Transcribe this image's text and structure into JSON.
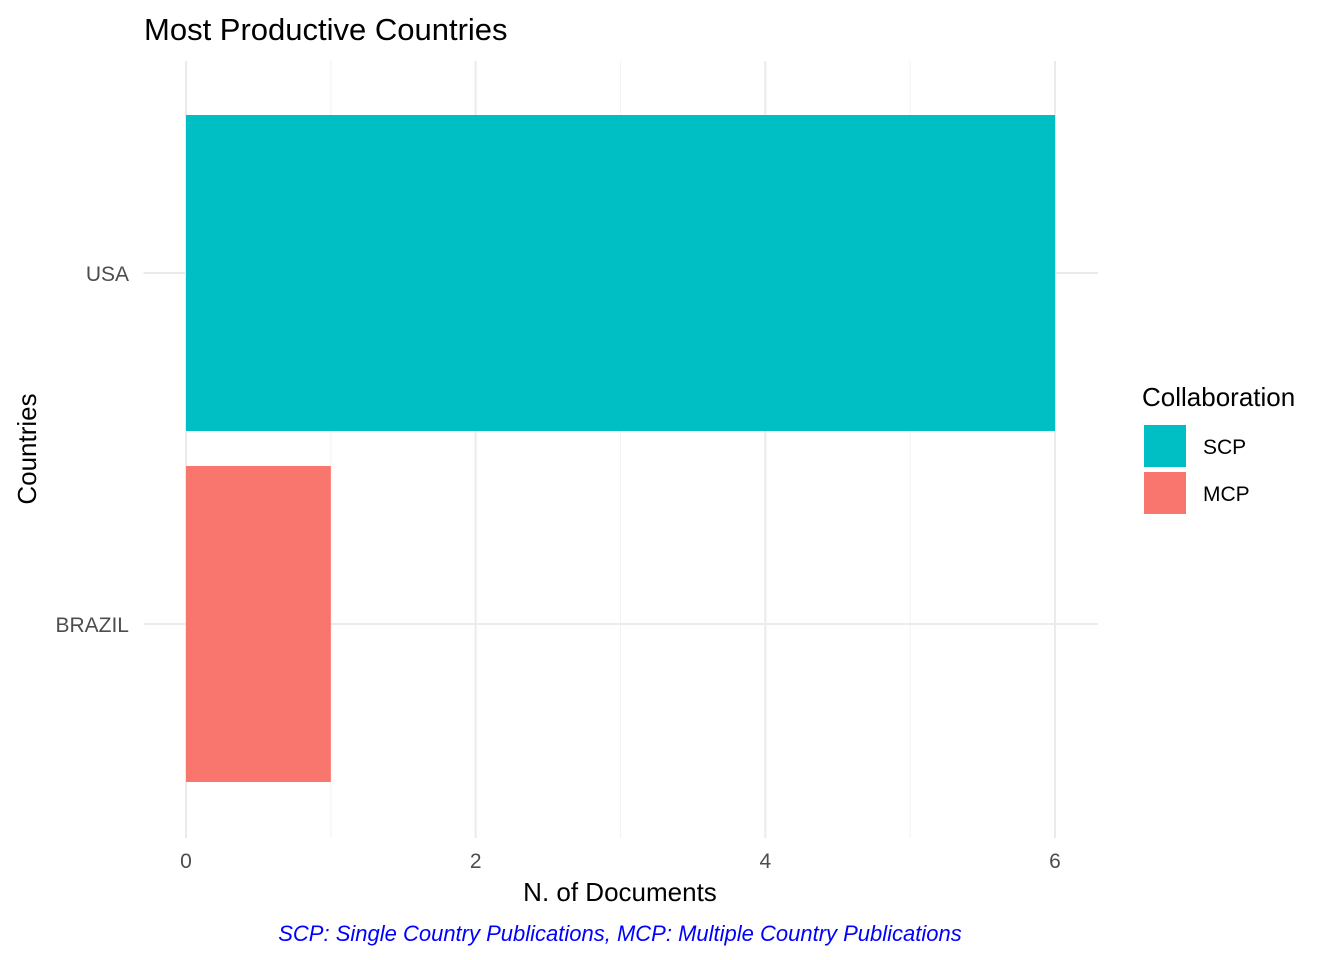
{
  "chart_data": {
    "type": "bar",
    "orientation": "horizontal",
    "stacked": true,
    "title": "Most Productive Countries",
    "xlabel": "N. of Documents",
    "ylabel": "Countries",
    "xlim": [
      0,
      6.3
    ],
    "x_ticks": [
      0,
      2,
      4,
      6
    ],
    "categories": [
      "USA",
      "BRAZIL"
    ],
    "series": [
      {
        "name": "SCP",
        "color": "#00BFC4",
        "values": [
          6,
          0
        ]
      },
      {
        "name": "MCP",
        "color": "#F8766D",
        "values": [
          0,
          1
        ]
      }
    ],
    "legend": {
      "title": "Collaboration",
      "placement": "right",
      "entries": [
        "SCP",
        "MCP"
      ]
    },
    "caption": "SCP: Single Country Publications, MCP: Multiple Country Publications",
    "caption_color": "#0000FF",
    "grid": true
  }
}
